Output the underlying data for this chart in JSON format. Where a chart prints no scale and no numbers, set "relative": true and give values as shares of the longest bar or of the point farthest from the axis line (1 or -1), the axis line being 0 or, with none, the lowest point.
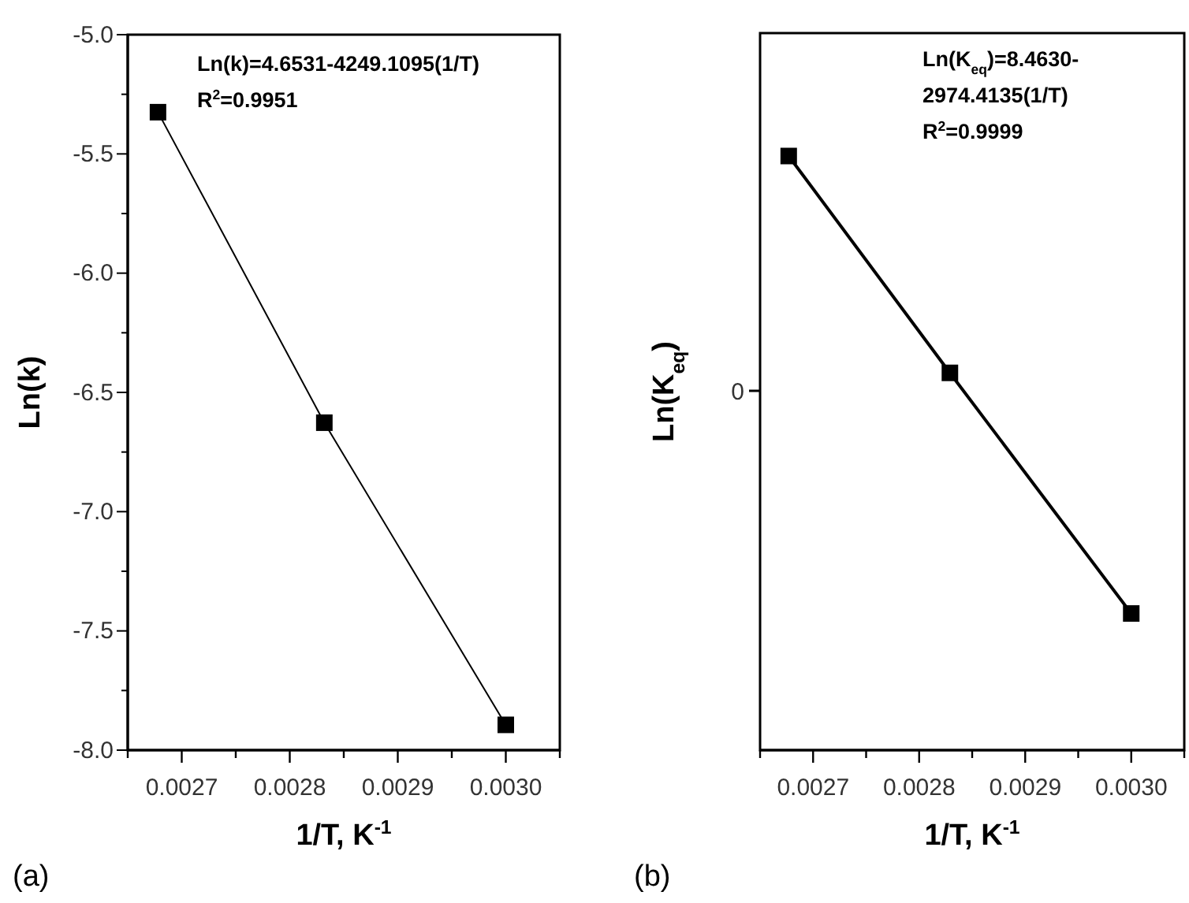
{
  "chart_data": [
    {
      "type": "line",
      "xlabel": "1/T, K$^{-1}$",
      "ylabel": "Ln(k)",
      "marker": "square",
      "line_style": "solid",
      "annotations": [
        "Ln(k)=4.6531-4249.1095(1/T)",
        "R$^{2}$=0.9951",
        "(a)"
      ],
      "x": [
        0.002678,
        0.002832,
        0.003
      ],
      "series": [
        {
          "color": "#000000",
          "values": [
            -5.325,
            -6.627,
            -7.894
          ]
        }
      ],
      "xlim": [
        0.00265,
        0.00305
      ],
      "xticks": [
        {
          "value": 0.00265,
          "label": null
        },
        0.0027,
        {
          "value": 0.00275,
          "label": null
        },
        0.0028,
        {
          "value": 0.00285,
          "label": null
        },
        0.0029,
        {
          "value": 0.00295,
          "label": null
        },
        {
          "value": 0.003,
          "label": "0.0030"
        },
        {
          "value": 0.00305,
          "label": null
        }
      ],
      "ylim": [
        -8,
        -5
      ],
      "yticks": [
        {
          "value": -8,
          "label": "-8.0"
        },
        {
          "value": -7.75,
          "label": null
        },
        {
          "value": -7.5,
          "label": "-7.5"
        },
        {
          "value": -7.25,
          "label": null
        },
        {
          "value": -7,
          "label": "-7.0"
        },
        {
          "value": -6.75,
          "label": null
        },
        {
          "value": -6.5,
          "label": "-6.5"
        },
        {
          "value": -6.25,
          "label": null
        },
        {
          "value": -6,
          "label": "-6.0"
        },
        {
          "value": -5.75,
          "label": null
        },
        {
          "value": -5.5,
          "label": "-5.5"
        },
        {
          "value": -5.25,
          "label": null
        },
        {
          "value": -5,
          "label": "-5.0"
        }
      ]
    },
    {
      "type": "line",
      "xlabel": "1/T, K$^{-1}$",
      "ylabel": "Ln(K$_{eq}$)",
      "marker": "square",
      "line_style": "solid",
      "relative": true,
      "annotations": [
        "0",
        "Ln(K$_{eq}$)=8.4630-",
        "2974.4135(1/T)",
        "R$^{2}$=0.9999",
        "(b)"
      ],
      "x": [
        0.002677,
        0.002829,
        0.003
      ],
      "series": [
        {
          "color": "#000000",
          "values": [
            1,
            0.635,
            0.23
          ]
        }
      ],
      "xlim": [
        0.00265,
        0.00305
      ],
      "xticks": [
        {
          "value": 0.00265,
          "label": null
        },
        0.0027,
        {
          "value": 0.00275,
          "label": null
        },
        0.0028,
        {
          "value": 0.00285,
          "label": null
        },
        0.0029,
        {
          "value": 0.00295,
          "label": null
        },
        {
          "value": 0.003,
          "label": "0.0030"
        },
        {
          "value": 0.00305,
          "label": null
        }
      ]
    }
  ]
}
